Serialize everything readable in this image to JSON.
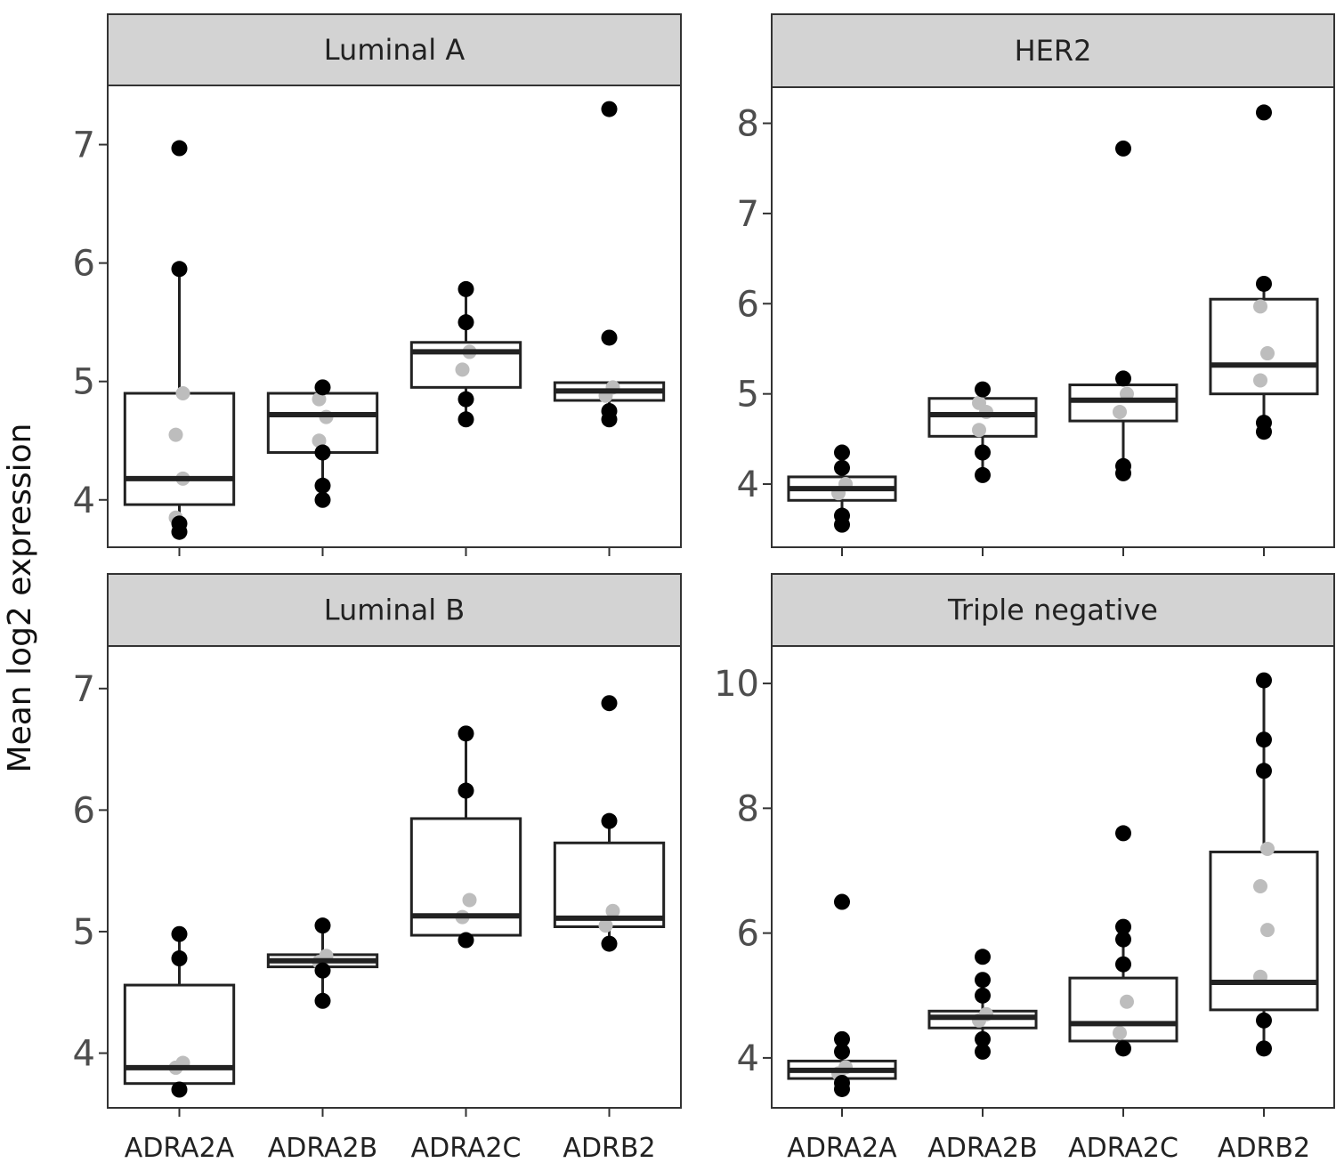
{
  "chart_data": {
    "type": "boxplot",
    "ylabel": "Mean log2 expression",
    "categories": [
      "ADRA2A",
      "ADRA2B",
      "ADRA2C",
      "ADRB2"
    ],
    "colors": {
      "strip": "#d3d3d3",
      "box": "#222222",
      "outlier": "#000000",
      "jitter": "#bdbdbd"
    },
    "panels": [
      {
        "title": "Luminal A",
        "ylim": [
          3.6,
          7.5
        ],
        "yticks": [
          4,
          5,
          6,
          7
        ],
        "boxes": [
          {
            "category": "ADRA2A",
            "q1": 3.96,
            "median": 4.18,
            "q3": 4.9,
            "whisker_low": 3.8,
            "whisker_high": 5.95,
            "outliers": [
              3.73,
              3.8,
              5.95,
              6.97
            ],
            "points": [
              3.85,
              4.18,
              4.55,
              4.9
            ]
          },
          {
            "category": "ADRA2B",
            "q1": 4.4,
            "median": 4.72,
            "q3": 4.9,
            "whisker_low": 4.0,
            "whisker_high": 4.95,
            "outliers": [
              4.0,
              4.12,
              4.4,
              4.95
            ],
            "points": [
              4.5,
              4.7,
              4.85
            ]
          },
          {
            "category": "ADRA2C",
            "q1": 4.95,
            "median": 5.25,
            "q3": 5.33,
            "whisker_low": 4.68,
            "whisker_high": 5.78,
            "outliers": [
              4.68,
              4.85,
              5.5,
              5.78
            ],
            "points": [
              5.1,
              5.25
            ]
          },
          {
            "category": "ADRB2",
            "q1": 4.84,
            "median": 4.92,
            "q3": 4.99,
            "whisker_low": 4.68,
            "whisker_high": 5.0,
            "outliers": [
              4.68,
              4.75,
              5.37,
              7.3
            ],
            "points": [
              4.88,
              4.95
            ]
          }
        ]
      },
      {
        "title": "HER2",
        "ylim": [
          3.3,
          8.4
        ],
        "yticks": [
          4,
          5,
          6,
          7,
          8
        ],
        "boxes": [
          {
            "category": "ADRA2A",
            "q1": 3.82,
            "median": 3.95,
            "q3": 4.08,
            "whisker_low": 3.55,
            "whisker_high": 4.35,
            "outliers": [
              3.55,
              3.65,
              4.18,
              4.35
            ],
            "points": [
              3.9,
              4.0
            ]
          },
          {
            "category": "ADRA2B",
            "q1": 4.53,
            "median": 4.77,
            "q3": 4.95,
            "whisker_low": 4.1,
            "whisker_high": 5.05,
            "outliers": [
              4.1,
              4.35,
              5.05
            ],
            "points": [
              4.6,
              4.8,
              4.9
            ]
          },
          {
            "category": "ADRA2C",
            "q1": 4.7,
            "median": 4.93,
            "q3": 5.1,
            "whisker_low": 4.12,
            "whisker_high": 5.17,
            "outliers": [
              4.12,
              4.2,
              5.17,
              7.72
            ],
            "points": [
              4.8,
              5.0
            ]
          },
          {
            "category": "ADRB2",
            "q1": 5.0,
            "median": 5.32,
            "q3": 6.05,
            "whisker_low": 4.58,
            "whisker_high": 6.22,
            "outliers": [
              4.58,
              4.68,
              6.22,
              8.12
            ],
            "points": [
              5.15,
              5.45,
              5.97
            ]
          }
        ]
      },
      {
        "title": "Luminal B",
        "ylim": [
          3.55,
          7.35
        ],
        "yticks": [
          4,
          5,
          6,
          7
        ],
        "boxes": [
          {
            "category": "ADRA2A",
            "q1": 3.75,
            "median": 3.88,
            "q3": 4.56,
            "whisker_low": 3.7,
            "whisker_high": 4.98,
            "outliers": [
              3.7,
              4.78,
              4.98
            ],
            "points": [
              3.88,
              3.92
            ]
          },
          {
            "category": "ADRA2B",
            "q1": 4.71,
            "median": 4.76,
            "q3": 4.81,
            "whisker_low": 4.43,
            "whisker_high": 5.05,
            "outliers": [
              4.43,
              4.68,
              5.05
            ],
            "points": [
              4.75,
              4.8
            ]
          },
          {
            "category": "ADRA2C",
            "q1": 4.97,
            "median": 5.13,
            "q3": 5.93,
            "whisker_low": 4.93,
            "whisker_high": 6.63,
            "outliers": [
              4.93,
              6.16,
              6.63
            ],
            "points": [
              5.12,
              5.26
            ]
          },
          {
            "category": "ADRB2",
            "q1": 5.04,
            "median": 5.11,
            "q3": 5.73,
            "whisker_low": 4.9,
            "whisker_high": 5.91,
            "outliers": [
              4.9,
              5.91,
              6.88
            ],
            "points": [
              5.05,
              5.17
            ]
          }
        ]
      },
      {
        "title": "Triple negative",
        "ylim": [
          3.2,
          10.6
        ],
        "yticks": [
          4,
          6,
          8,
          10
        ],
        "boxes": [
          {
            "category": "ADRA2A",
            "q1": 3.67,
            "median": 3.8,
            "q3": 3.95,
            "whisker_low": 3.5,
            "whisker_high": 4.3,
            "outliers": [
              3.5,
              3.6,
              4.1,
              4.3,
              6.5
            ],
            "points": [
              3.75,
              3.85
            ]
          },
          {
            "category": "ADRA2B",
            "q1": 4.48,
            "median": 4.65,
            "q3": 4.75,
            "whisker_low": 4.1,
            "whisker_high": 5.25,
            "outliers": [
              4.1,
              4.3,
              5.0,
              5.25,
              5.62
            ],
            "points": [
              4.6,
              4.7
            ]
          },
          {
            "category": "ADRA2C",
            "q1": 4.27,
            "median": 4.55,
            "q3": 5.28,
            "whisker_low": 4.15,
            "whisker_high": 6.1,
            "outliers": [
              4.15,
              5.5,
              5.9,
              6.1,
              7.6
            ],
            "points": [
              4.4,
              4.9
            ]
          },
          {
            "category": "ADRB2",
            "q1": 4.77,
            "median": 5.21,
            "q3": 7.3,
            "whisker_low": 4.15,
            "whisker_high": 10.05,
            "outliers": [
              4.15,
              4.6,
              8.6,
              9.1,
              10.05
            ],
            "points": [
              5.3,
              6.05,
              6.75,
              7.35
            ]
          }
        ]
      }
    ]
  }
}
